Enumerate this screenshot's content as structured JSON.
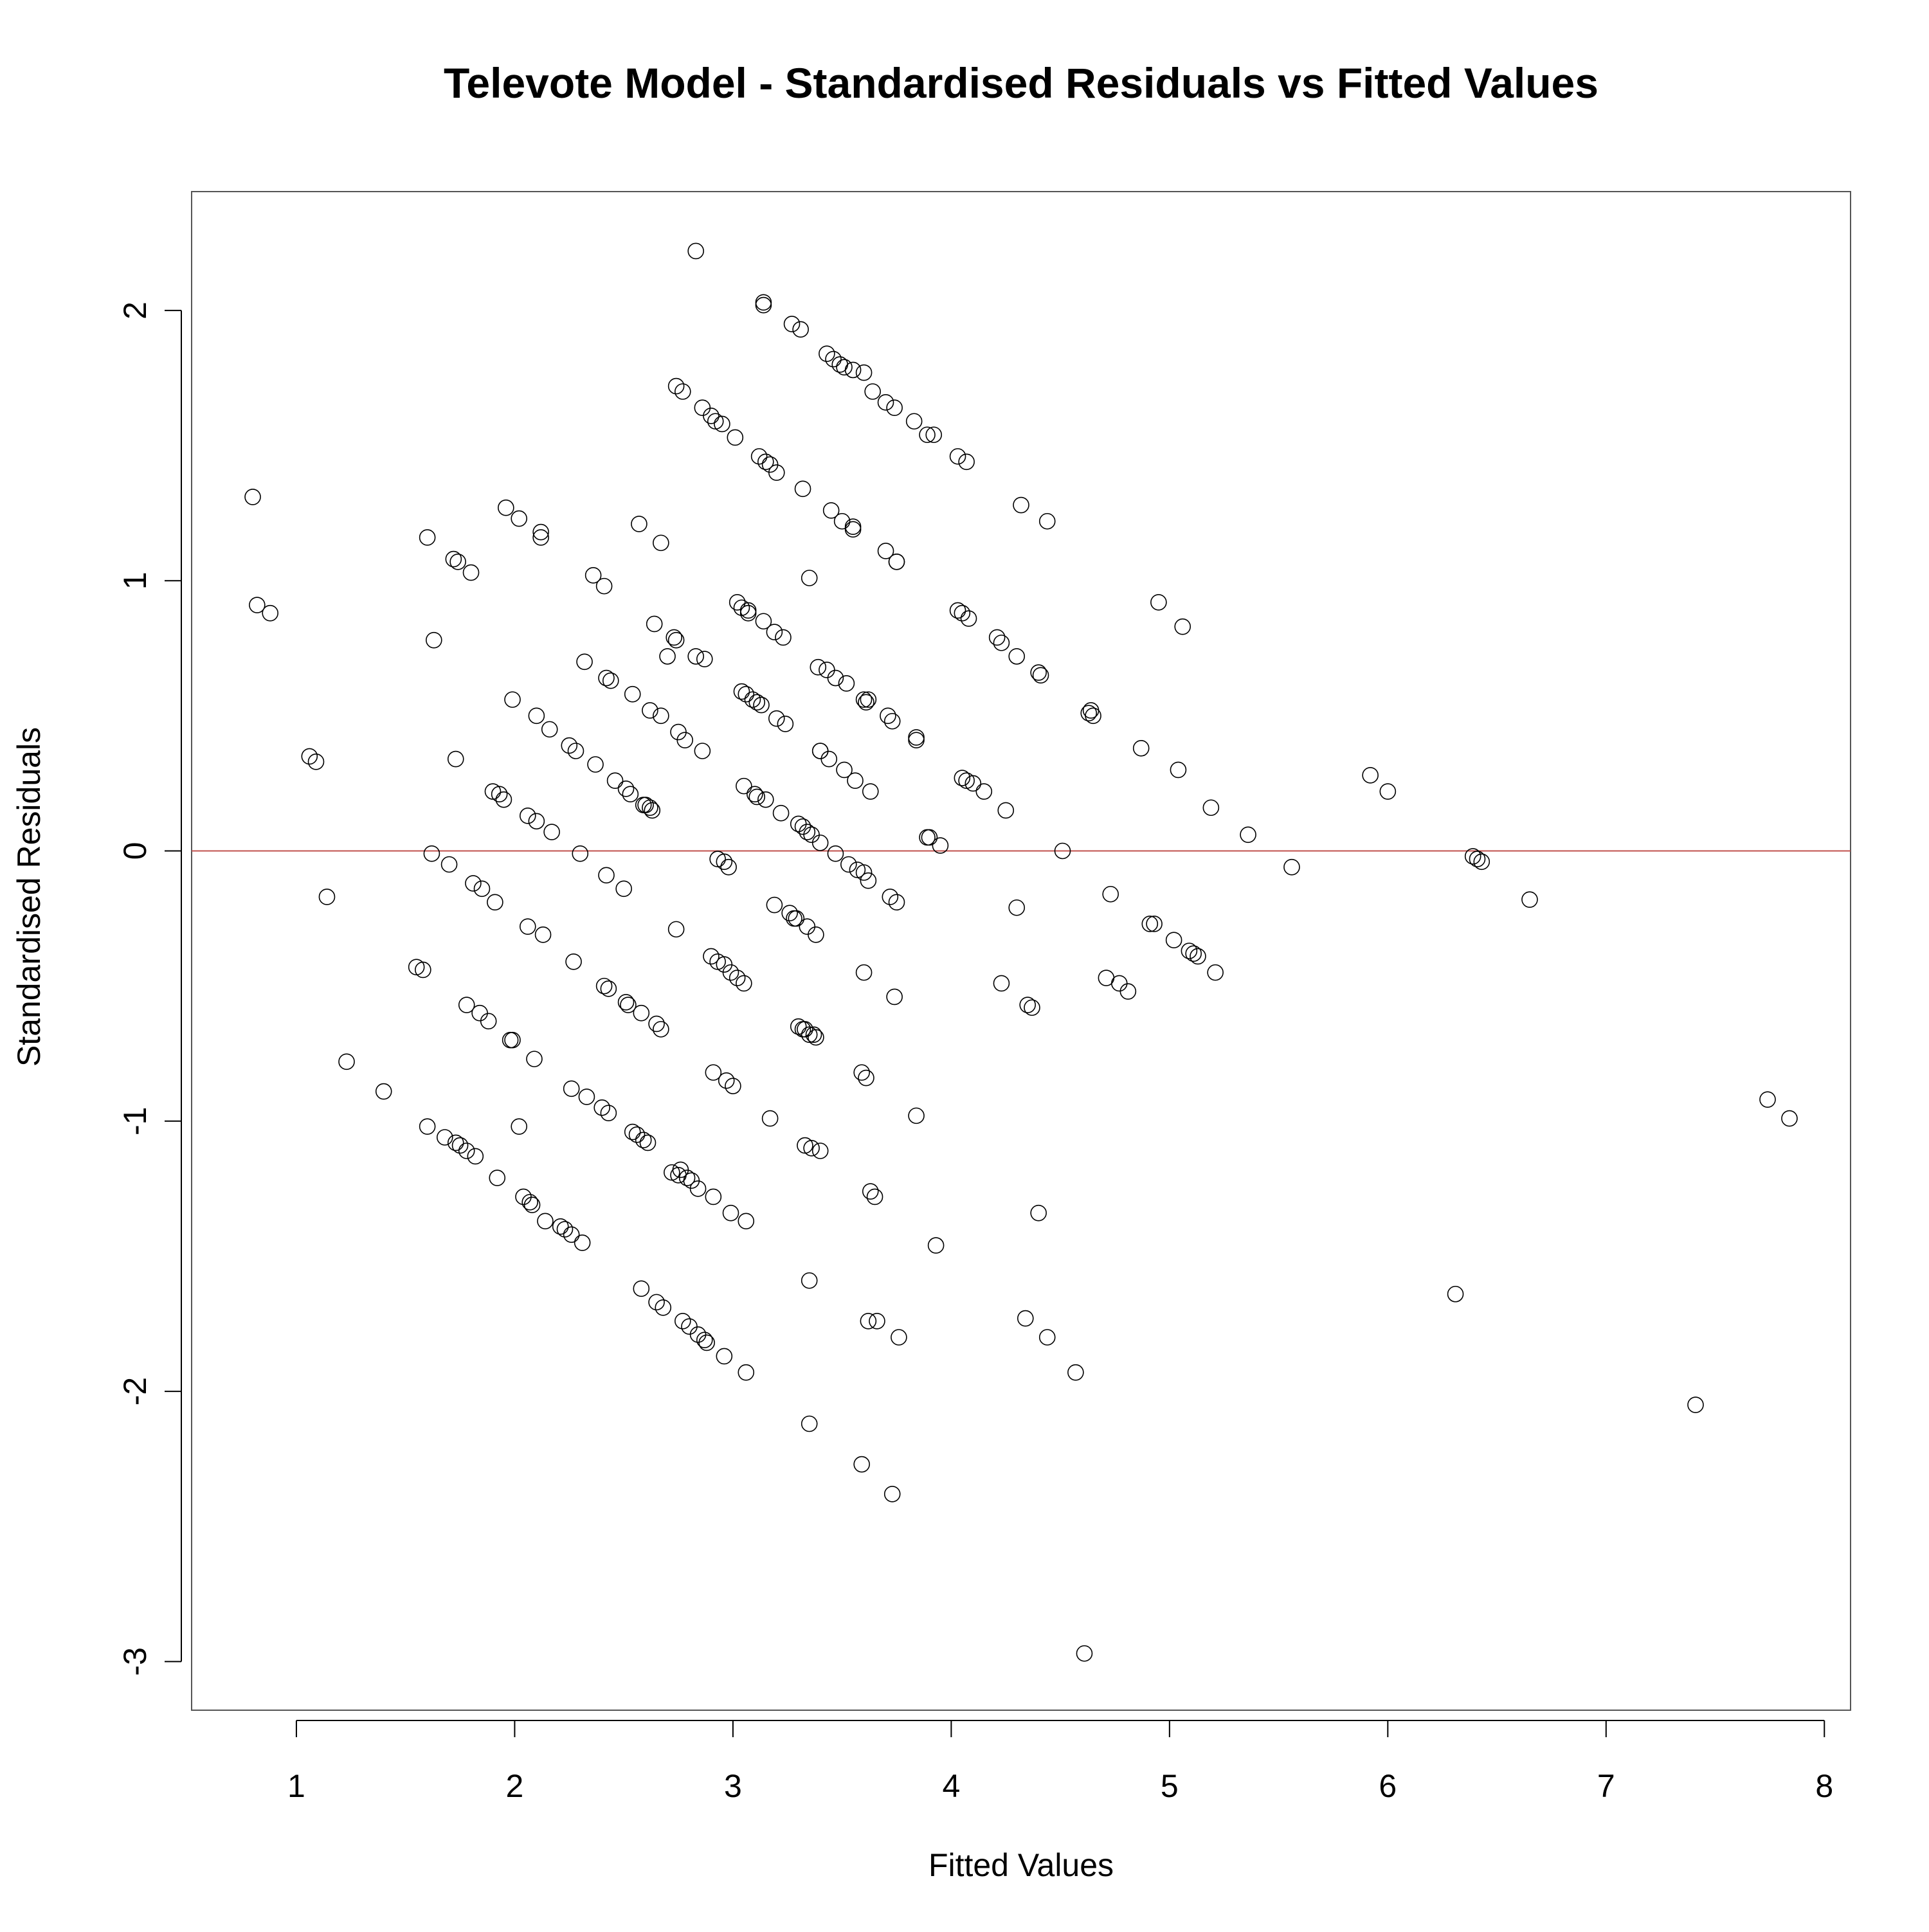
{
  "chart_data": {
    "type": "scatter",
    "title": "Televote Model - Standardised Residuals vs Fitted Values",
    "xlabel": "Fitted Values",
    "ylabel": "Standardised Residuals",
    "xlim": [
      0.52,
      8.12
    ],
    "ylim": [
      -3.18,
      2.44
    ],
    "xticks": [
      1,
      2,
      3,
      4,
      5,
      6,
      7,
      8
    ],
    "yticks": [
      -3,
      -2,
      -1,
      0,
      1,
      2
    ],
    "reference_line": {
      "y": 0,
      "color": "#c0504d"
    },
    "grid": false,
    "points": [
      [
        0.8,
        1.31
      ],
      [
        0.82,
        0.91
      ],
      [
        0.88,
        0.88
      ],
      [
        1.06,
        0.35
      ],
      [
        1.09,
        0.33
      ],
      [
        1.14,
        -0.17
      ],
      [
        1.23,
        -0.78
      ],
      [
        1.4,
        -0.89
      ],
      [
        1.55,
        -0.43
      ],
      [
        1.58,
        -0.44
      ],
      [
        1.6,
        1.16
      ],
      [
        1.6,
        -1.02
      ],
      [
        1.62,
        -0.01
      ],
      [
        1.63,
        0.78
      ],
      [
        1.68,
        -1.06
      ],
      [
        1.7,
        -0.05
      ],
      [
        1.72,
        1.08
      ],
      [
        1.73,
        -1.08
      ],
      [
        1.73,
        0.34
      ],
      [
        1.74,
        1.07
      ],
      [
        1.75,
        -1.09
      ],
      [
        1.78,
        -1.11
      ],
      [
        1.78,
        -0.57
      ],
      [
        1.8,
        1.03
      ],
      [
        1.81,
        -0.12
      ],
      [
        1.82,
        -1.13
      ],
      [
        1.84,
        -0.6
      ],
      [
        1.85,
        -0.14
      ],
      [
        1.88,
        -0.63
      ],
      [
        1.9,
        0.22
      ],
      [
        1.91,
        -0.19
      ],
      [
        1.92,
        -1.21
      ],
      [
        1.93,
        0.21
      ],
      [
        1.95,
        0.19
      ],
      [
        1.96,
        1.27
      ],
      [
        1.98,
        -0.7
      ],
      [
        1.99,
        0.56
      ],
      [
        1.99,
        -0.7
      ],
      [
        2.02,
        1.23
      ],
      [
        2.02,
        -1.02
      ],
      [
        2.04,
        -1.28
      ],
      [
        2.06,
        -0.28
      ],
      [
        2.06,
        0.13
      ],
      [
        2.07,
        -1.3
      ],
      [
        2.08,
        -1.31
      ],
      [
        2.09,
        -0.77
      ],
      [
        2.1,
        0.5
      ],
      [
        2.1,
        0.11
      ],
      [
        2.12,
        1.16
      ],
      [
        2.12,
        1.18
      ],
      [
        2.13,
        -0.31
      ],
      [
        2.14,
        -1.37
      ],
      [
        2.16,
        0.45
      ],
      [
        2.17,
        0.07
      ],
      [
        2.21,
        -1.39
      ],
      [
        2.23,
        -1.4
      ],
      [
        2.25,
        0.39
      ],
      [
        2.26,
        -1.42
      ],
      [
        2.26,
        -0.88
      ],
      [
        2.27,
        -0.41
      ],
      [
        2.28,
        0.37
      ],
      [
        2.3,
        -0.01
      ],
      [
        2.31,
        -1.45
      ],
      [
        2.32,
        0.7
      ],
      [
        2.33,
        -0.91
      ],
      [
        2.36,
        1.02
      ],
      [
        2.37,
        0.32
      ],
      [
        2.4,
        -0.95
      ],
      [
        2.41,
        -0.5
      ],
      [
        2.41,
        0.98
      ],
      [
        2.42,
        0.64
      ],
      [
        2.42,
        -0.09
      ],
      [
        2.43,
        -0.51
      ],
      [
        2.43,
        -0.97
      ],
      [
        2.44,
        0.63
      ],
      [
        2.46,
        0.26
      ],
      [
        2.5,
        -0.14
      ],
      [
        2.51,
        0.23
      ],
      [
        2.51,
        -0.56
      ],
      [
        2.52,
        -0.57
      ],
      [
        2.53,
        0.21
      ],
      [
        2.54,
        -1.04
      ],
      [
        2.54,
        0.58
      ],
      [
        2.56,
        -1.05
      ],
      [
        2.57,
        1.21
      ],
      [
        2.58,
        -1.62
      ],
      [
        2.58,
        -0.6
      ],
      [
        2.59,
        0.17
      ],
      [
        2.59,
        -1.07
      ],
      [
        2.6,
        0.17
      ],
      [
        2.61,
        -1.08
      ],
      [
        2.62,
        0.52
      ],
      [
        2.62,
        0.16
      ],
      [
        2.63,
        0.15
      ],
      [
        2.64,
        0.84
      ],
      [
        2.65,
        -1.67
      ],
      [
        2.65,
        -0.64
      ],
      [
        2.67,
        1.14
      ],
      [
        2.67,
        0.5
      ],
      [
        2.67,
        -0.66
      ],
      [
        2.68,
        -1.69
      ],
      [
        2.7,
        0.72
      ],
      [
        2.72,
        -1.19
      ],
      [
        2.73,
        0.79
      ],
      [
        2.74,
        0.78
      ],
      [
        2.74,
        -0.29
      ],
      [
        2.74,
        1.72
      ],
      [
        2.75,
        0.44
      ],
      [
        2.75,
        -1.2
      ],
      [
        2.76,
        -1.18
      ],
      [
        2.77,
        -1.74
      ],
      [
        2.77,
        1.7
      ],
      [
        2.78,
        0.41
      ],
      [
        2.79,
        -1.21
      ],
      [
        2.8,
        -1.76
      ],
      [
        2.81,
        -1.22
      ],
      [
        2.83,
        2.22
      ],
      [
        2.83,
        0.72
      ],
      [
        2.84,
        -1.25
      ],
      [
        2.84,
        -1.79
      ],
      [
        2.86,
        1.64
      ],
      [
        2.86,
        0.37
      ],
      [
        2.87,
        -1.81
      ],
      [
        2.87,
        0.71
      ],
      [
        2.88,
        -1.82
      ],
      [
        2.9,
        1.61
      ],
      [
        2.9,
        -0.39
      ],
      [
        2.91,
        -1.28
      ],
      [
        2.91,
        -0.82
      ],
      [
        2.92,
        1.59
      ],
      [
        2.93,
        -0.03
      ],
      [
        2.93,
        -0.41
      ],
      [
        2.95,
        1.58
      ],
      [
        2.96,
        -0.04
      ],
      [
        2.96,
        -0.42
      ],
      [
        2.96,
        -1.87
      ],
      [
        2.97,
        -0.85
      ],
      [
        2.98,
        -0.06
      ],
      [
        2.99,
        -0.45
      ],
      [
        2.99,
        -1.34
      ],
      [
        3.0,
        -0.87
      ],
      [
        3.01,
        1.53
      ],
      [
        3.02,
        0.92
      ],
      [
        3.02,
        -0.47
      ],
      [
        3.04,
        0.59
      ],
      [
        3.04,
        0.9
      ],
      [
        3.05,
        -0.49
      ],
      [
        3.05,
        0.24
      ],
      [
        3.06,
        -1.37
      ],
      [
        3.06,
        0.58
      ],
      [
        3.06,
        -1.93
      ],
      [
        3.07,
        0.88
      ],
      [
        3.07,
        0.89
      ],
      [
        3.09,
        0.56
      ],
      [
        3.1,
        0.21
      ],
      [
        3.11,
        0.55
      ],
      [
        3.11,
        0.2
      ],
      [
        3.12,
        1.46
      ],
      [
        3.13,
        0.54
      ],
      [
        3.14,
        2.03
      ],
      [
        3.14,
        2.02
      ],
      [
        3.14,
        0.85
      ],
      [
        3.15,
        0.19
      ],
      [
        3.15,
        1.44
      ],
      [
        3.17,
        1.43
      ],
      [
        3.17,
        -0.99
      ],
      [
        3.19,
        0.81
      ],
      [
        3.19,
        -0.2
      ],
      [
        3.2,
        0.49
      ],
      [
        3.2,
        1.4
      ],
      [
        3.22,
        0.14
      ],
      [
        3.23,
        0.79
      ],
      [
        3.24,
        0.47
      ],
      [
        3.26,
        -0.23
      ],
      [
        3.27,
        1.95
      ],
      [
        3.28,
        -0.25
      ],
      [
        3.29,
        -0.25
      ],
      [
        3.3,
        0.1
      ],
      [
        3.3,
        -0.65
      ],
      [
        3.31,
        1.93
      ],
      [
        3.32,
        1.34
      ],
      [
        3.32,
        0.09
      ],
      [
        3.32,
        -0.66
      ],
      [
        3.33,
        -1.09
      ],
      [
        3.33,
        -0.66
      ],
      [
        3.34,
        0.07
      ],
      [
        3.34,
        -0.28
      ],
      [
        3.35,
        1.01
      ],
      [
        3.35,
        -0.68
      ],
      [
        3.35,
        -1.59
      ],
      [
        3.35,
        -2.12
      ],
      [
        3.36,
        -1.1
      ],
      [
        3.36,
        0.06
      ],
      [
        3.37,
        -0.68
      ],
      [
        3.38,
        -0.31
      ],
      [
        3.38,
        -0.69
      ],
      [
        3.39,
        0.68
      ],
      [
        3.4,
        0.37
      ],
      [
        3.4,
        -1.11
      ],
      [
        3.4,
        0.03
      ],
      [
        3.4,
        0.37
      ],
      [
        3.43,
        0.67
      ],
      [
        3.43,
        1.84
      ],
      [
        3.44,
        0.34
      ],
      [
        3.45,
        1.26
      ],
      [
        3.46,
        1.82
      ],
      [
        3.47,
        -0.01
      ],
      [
        3.47,
        0.64
      ],
      [
        3.49,
        1.8
      ],
      [
        3.5,
        1.22
      ],
      [
        3.51,
        1.79
      ],
      [
        3.51,
        0.3
      ],
      [
        3.52,
        0.62
      ],
      [
        3.53,
        -0.05
      ],
      [
        3.55,
        1.78
      ],
      [
        3.55,
        1.19
      ],
      [
        3.55,
        1.2
      ],
      [
        3.56,
        0.26
      ],
      [
        3.57,
        -0.07
      ],
      [
        3.59,
        -0.82
      ],
      [
        3.59,
        -2.27
      ],
      [
        3.6,
        -0.08
      ],
      [
        3.6,
        0.56
      ],
      [
        3.6,
        1.77
      ],
      [
        3.6,
        -0.45
      ],
      [
        3.61,
        0.55
      ],
      [
        3.61,
        -0.84
      ],
      [
        3.62,
        0.56
      ],
      [
        3.62,
        -0.11
      ],
      [
        3.62,
        -1.74
      ],
      [
        3.63,
        -1.26
      ],
      [
        3.63,
        0.22
      ],
      [
        3.64,
        1.7
      ],
      [
        3.65,
        -1.28
      ],
      [
        3.66,
        -1.74
      ],
      [
        3.7,
        1.66
      ],
      [
        3.7,
        1.11
      ],
      [
        3.71,
        0.5
      ],
      [
        3.72,
        -0.17
      ],
      [
        3.73,
        0.48
      ],
      [
        3.73,
        -2.38
      ],
      [
        3.74,
        -0.54
      ],
      [
        3.74,
        1.64
      ],
      [
        3.75,
        1.07
      ],
      [
        3.75,
        -0.19
      ],
      [
        3.75,
        1.07
      ],
      [
        3.76,
        -1.8
      ],
      [
        3.83,
        1.59
      ],
      [
        3.84,
        0.42
      ],
      [
        3.84,
        -0.98
      ],
      [
        3.84,
        0.41
      ],
      [
        3.89,
        1.54
      ],
      [
        3.89,
        0.05
      ],
      [
        3.9,
        0.05
      ],
      [
        3.92,
        1.54
      ],
      [
        3.93,
        -1.46
      ],
      [
        3.95,
        0.02
      ],
      [
        4.03,
        1.46
      ],
      [
        4.03,
        0.89
      ],
      [
        4.05,
        0.88
      ],
      [
        4.05,
        0.27
      ],
      [
        4.07,
        1.44
      ],
      [
        4.07,
        0.26
      ],
      [
        4.08,
        0.86
      ],
      [
        4.1,
        0.25
      ],
      [
        4.15,
        0.22
      ],
      [
        4.21,
        0.79
      ],
      [
        4.23,
        0.77
      ],
      [
        4.23,
        -0.49
      ],
      [
        4.25,
        0.15
      ],
      [
        4.3,
        0.72
      ],
      [
        4.3,
        -0.21
      ],
      [
        4.32,
        1.28
      ],
      [
        4.34,
        -1.73
      ],
      [
        4.35,
        -0.57
      ],
      [
        4.37,
        -0.58
      ],
      [
        4.4,
        0.66
      ],
      [
        4.4,
        -1.34
      ],
      [
        4.41,
        0.65
      ],
      [
        4.44,
        1.22
      ],
      [
        4.44,
        -1.8
      ],
      [
        4.51,
        0.0
      ],
      [
        4.57,
        -1.93
      ],
      [
        4.61,
        -2.97
      ],
      [
        4.63,
        0.51
      ],
      [
        4.64,
        0.52
      ],
      [
        4.65,
        0.5
      ],
      [
        4.71,
        -0.47
      ],
      [
        4.73,
        -0.16
      ],
      [
        4.77,
        -0.49
      ],
      [
        4.81,
        -0.52
      ],
      [
        4.87,
        0.38
      ],
      [
        4.91,
        -0.27
      ],
      [
        4.93,
        -0.27
      ],
      [
        4.95,
        0.92
      ],
      [
        5.02,
        -0.33
      ],
      [
        5.04,
        0.3
      ],
      [
        5.06,
        0.83
      ],
      [
        5.09,
        -0.37
      ],
      [
        5.11,
        -0.38
      ],
      [
        5.13,
        -0.39
      ],
      [
        5.19,
        0.16
      ],
      [
        5.21,
        -0.45
      ],
      [
        5.36,
        0.06
      ],
      [
        5.56,
        -0.06
      ],
      [
        5.92,
        0.28
      ],
      [
        6.0,
        0.22
      ],
      [
        6.31,
        -1.64
      ],
      [
        6.39,
        -0.02
      ],
      [
        6.41,
        -0.03
      ],
      [
        6.43,
        -0.04
      ],
      [
        6.65,
        -0.18
      ],
      [
        7.41,
        -2.05
      ],
      [
        7.74,
        -0.92
      ],
      [
        7.84,
        -0.99
      ]
    ]
  }
}
